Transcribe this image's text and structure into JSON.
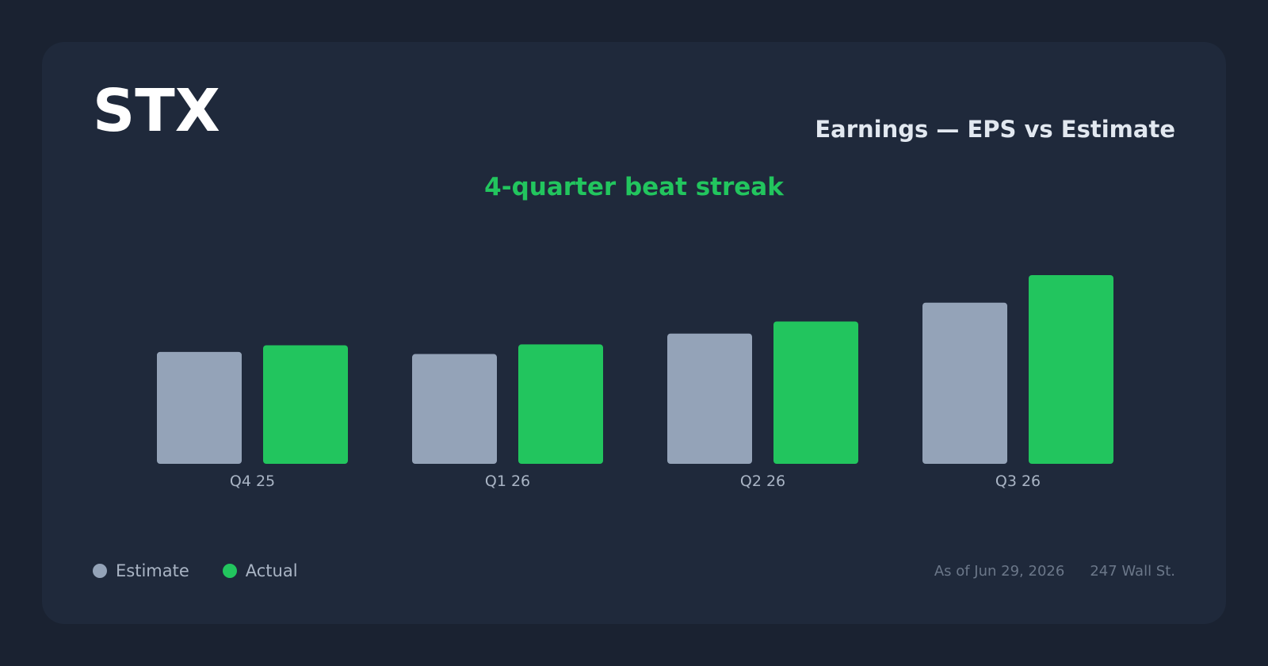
{
  "header": {
    "ticker": "STX",
    "title": "Earnings — EPS vs Estimate",
    "subtitle": "4-quarter beat streak"
  },
  "legend": {
    "items": [
      {
        "label": "Estimate",
        "color": "#94a3b8"
      },
      {
        "label": "Actual",
        "color": "#22c55e"
      }
    ]
  },
  "footer": {
    "as_of": "As of Jun 29, 2026",
    "source": "247 Wall St."
  },
  "colors": {
    "estimate": "#94a3b8",
    "actual": "#22c55e",
    "tick_label": "#a9b4c4"
  },
  "chart_data": {
    "type": "bar",
    "title": "Earnings — EPS vs Estimate",
    "subtitle": "4-quarter beat streak",
    "categories": [
      "Q4 25",
      "Q1 26",
      "Q2 26",
      "Q3 26"
    ],
    "series": [
      {
        "name": "Estimate",
        "values": [
          2.68,
          2.63,
          3.12,
          3.86
        ]
      },
      {
        "name": "Actual",
        "values": [
          2.84,
          2.86,
          3.41,
          4.52
        ]
      }
    ],
    "ylim": [
      0,
      4.52
    ],
    "grid": false,
    "legend": "bottom-left"
  }
}
